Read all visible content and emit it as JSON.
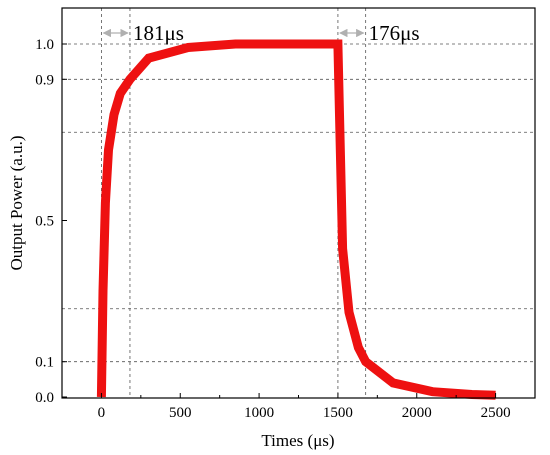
{
  "chart_data": {
    "type": "line",
    "title": "",
    "xlabel": "Times (μs)",
    "ylabel": "Output Power (a.u.)",
    "xlim": [
      -250,
      2750
    ],
    "ylim": [
      0,
      1.0
    ],
    "x_ticks": [
      0,
      500,
      1000,
      1500,
      2000,
      2500
    ],
    "x_tick_labels": [
      "0",
      "500",
      "1000",
      "1500",
      "2000",
      "2500"
    ],
    "y_ticks": [
      0,
      0.1,
      0.5,
      0.9,
      1.0
    ],
    "y_tick_labels": [
      "0.0",
      "0.1",
      "0.5",
      "0.9",
      "1.0"
    ],
    "grid": {
      "horizontal_dashed_at": [
        0.1,
        0.25,
        0.75,
        0.9,
        1.0
      ],
      "vertical_dashed_at": [
        0,
        181,
        1500,
        1676
      ]
    },
    "series": [
      {
        "color": "#ee1111",
        "x": [
          0,
          10,
          25,
          45,
          80,
          120,
          181,
          300,
          550,
          850,
          1200,
          1490,
          1500,
          1510,
          1530,
          1570,
          1630,
          1676,
          1850,
          2100,
          2350,
          2500
        ],
        "y": [
          0.0,
          0.3,
          0.55,
          0.7,
          0.8,
          0.86,
          0.9,
          0.96,
          0.99,
          1.0,
          1.0,
          1.0,
          1.0,
          0.8,
          0.42,
          0.24,
          0.14,
          0.1,
          0.04,
          0.015,
          0.007,
          0.005
        ]
      }
    ],
    "annotations": [
      {
        "text": "181μs",
        "span": [
          0,
          181
        ],
        "y": 1.0
      },
      {
        "text": "176μs",
        "span": [
          1500,
          1676
        ],
        "y": 1.0
      }
    ]
  }
}
